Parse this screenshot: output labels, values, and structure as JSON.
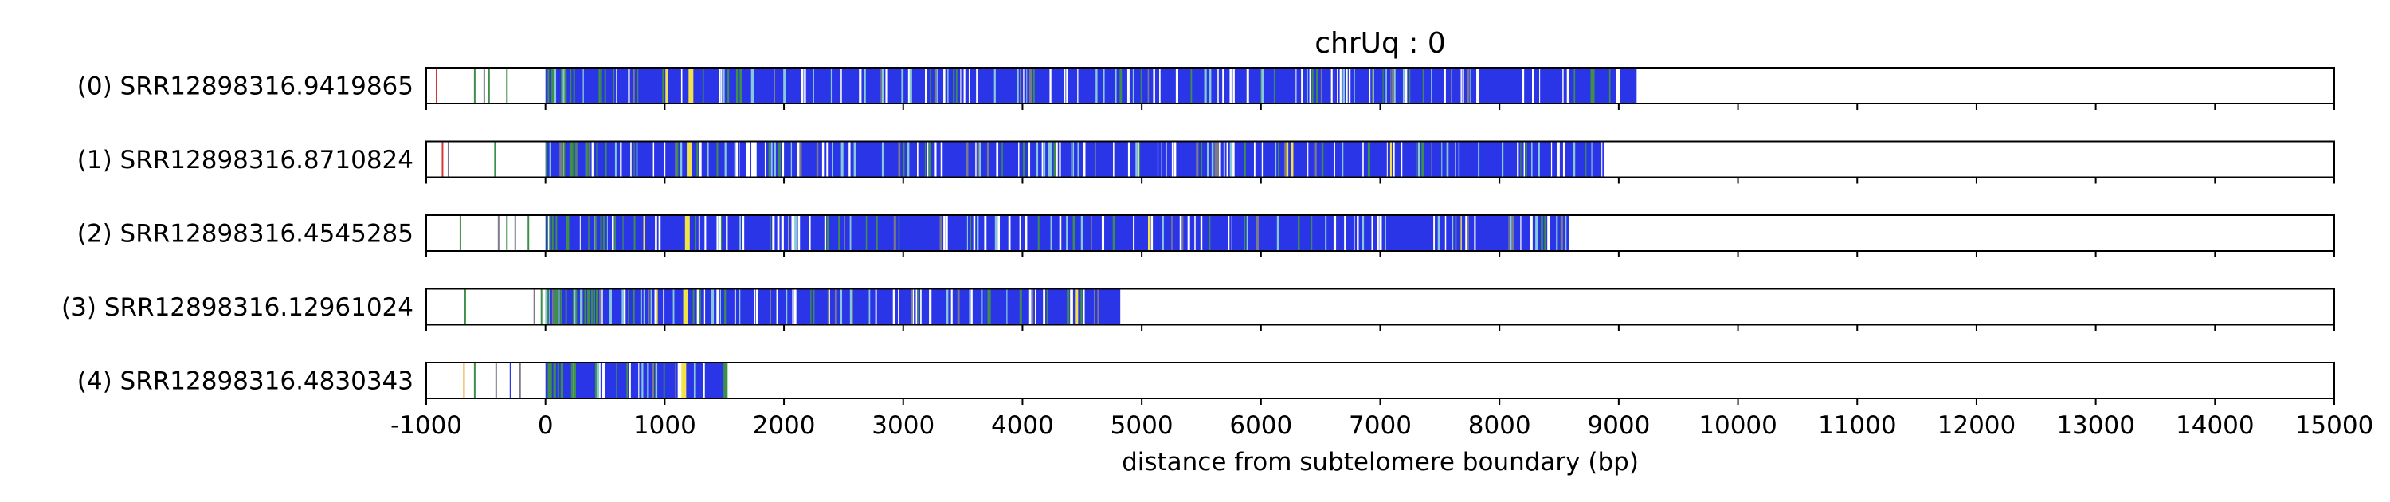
{
  "chart_data": {
    "type": "bar",
    "title": "chrUq : 0",
    "xlabel": "distance from subtelomere boundary (bp)",
    "ylabel": "",
    "xlim": [
      -1000,
      15000
    ],
    "xticks": [
      -1000,
      0,
      1000,
      2000,
      3000,
      4000,
      5000,
      6000,
      7000,
      8000,
      9000,
      10000,
      11000,
      12000,
      13000,
      14000,
      15000
    ],
    "grid": "x dashed",
    "tracks": [
      {
        "label": "(0) SRR12898316.9419865",
        "end": 9150,
        "sparse_marks": [
          {
            "x": -920,
            "color": "red"
          },
          {
            "x": -600,
            "color": "green"
          },
          {
            "x": -520,
            "color": "gray"
          },
          {
            "x": -480,
            "color": "green"
          },
          {
            "x": -330,
            "color": "green"
          }
        ]
      },
      {
        "label": "(1) SRR12898316.8710824",
        "end": 8880,
        "sparse_marks": [
          {
            "x": -870,
            "color": "red"
          },
          {
            "x": -820,
            "color": "gray"
          },
          {
            "x": -430,
            "color": "green"
          }
        ]
      },
      {
        "label": "(2) SRR12898316.4545285",
        "end": 8580,
        "sparse_marks": [
          {
            "x": -720,
            "color": "green"
          },
          {
            "x": -400,
            "color": "gray"
          },
          {
            "x": -330,
            "color": "green"
          },
          {
            "x": -260,
            "color": "gray"
          },
          {
            "x": -150,
            "color": "green"
          }
        ]
      },
      {
        "label": "(3) SRR12898316.12961024",
        "end": 4820,
        "sparse_marks": [
          {
            "x": -680,
            "color": "green"
          },
          {
            "x": -100,
            "color": "gray"
          },
          {
            "x": -40,
            "color": "green"
          }
        ]
      },
      {
        "label": "(4) SRR12898316.4830343",
        "end": 1520,
        "sparse_marks": [
          {
            "x": -690,
            "color": "orange"
          },
          {
            "x": -600,
            "color": "green"
          },
          {
            "x": -420,
            "color": "gray"
          },
          {
            "x": -300,
            "color": "blue"
          },
          {
            "x": -220,
            "color": "gray"
          }
        ]
      }
    ],
    "colors": {
      "blue": "#2b35e8",
      "green": "#3f8f4a",
      "yellow": "#f2e24a",
      "cyan": "#87c9d9",
      "gray": "#7a7a8a",
      "red": "#d23a3a",
      "orange": "#f0a030",
      "grid": "#c8c8c8"
    }
  }
}
